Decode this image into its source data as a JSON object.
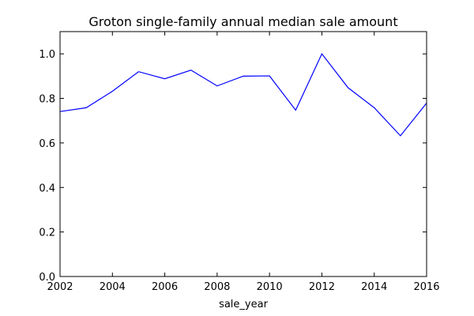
{
  "chart_data": {
    "type": "line",
    "title": "Groton single-family annual median sale amount",
    "xlabel": "sale_year",
    "ylabel": "",
    "xlim": [
      2002,
      2016
    ],
    "ylim": [
      0.0,
      1.1
    ],
    "xticks": [
      "2002",
      "2004",
      "2006",
      "2008",
      "2010",
      "2012",
      "2014",
      "2016"
    ],
    "yticks": [
      "0.0",
      "0.2",
      "0.4",
      "0.6",
      "0.8",
      "1.0"
    ],
    "grid": false,
    "legend": null,
    "series": [
      {
        "color": "#0000ff",
        "x": [
          2002,
          2003,
          2004,
          2005,
          2006,
          2007,
          2008,
          2009,
          2010,
          2011,
          2012,
          2013,
          2014,
          2015,
          2016
        ],
        "y": [
          0.741,
          0.758,
          0.832,
          0.92,
          0.888,
          0.927,
          0.856,
          0.9,
          0.901,
          0.747,
          1.0,
          0.848,
          0.758,
          0.632,
          0.779
        ]
      }
    ]
  }
}
